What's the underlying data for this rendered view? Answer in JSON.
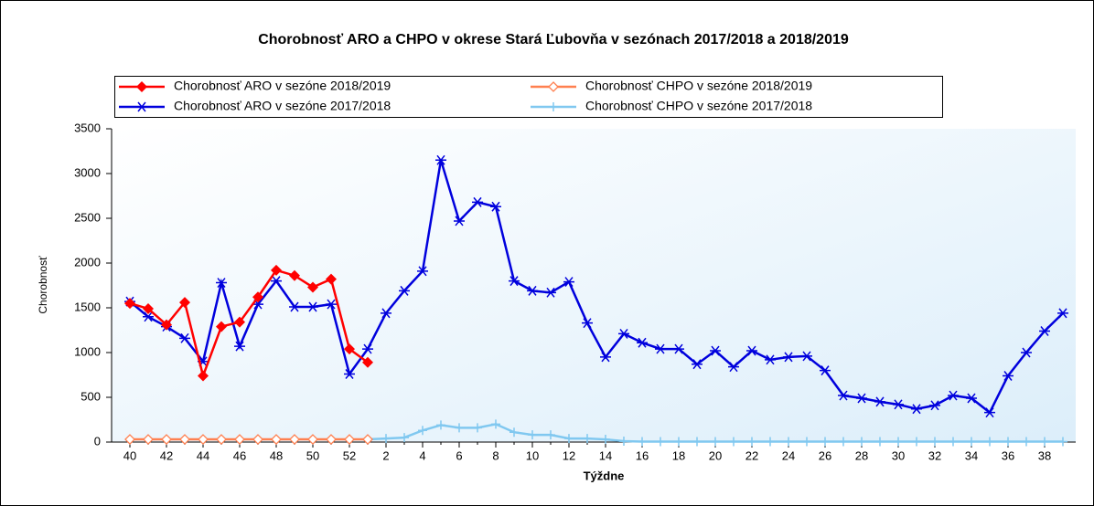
{
  "chart_data": {
    "type": "line",
    "title": "Chorobnosť ARO a CHPO v okrese Stará Ľubovňa v sezónach 2017/2018 a 2018/2019",
    "x_label": "Týždne",
    "y_label": "Chorobnosť",
    "categories": [
      "40",
      null,
      "42",
      null,
      "44",
      null,
      "46",
      null,
      "48",
      null,
      "50",
      null,
      "52",
      null,
      "2",
      null,
      "4",
      null,
      "6",
      null,
      "8",
      null,
      "10",
      null,
      "12",
      null,
      "14",
      null,
      "16",
      null,
      "18",
      null,
      "20",
      null,
      "22",
      null,
      "24",
      null,
      "26",
      null,
      "28",
      null,
      "30",
      null,
      "32",
      null,
      "34",
      null,
      "36",
      null,
      "38",
      null
    ],
    "ylim": [
      0,
      3500
    ],
    "yticks": [
      0,
      500,
      1000,
      1500,
      2000,
      2500,
      3000,
      3500
    ],
    "series": [
      {
        "name": "Chorobnosť ARO v sezóne 2018/2019",
        "color": "#ff0000",
        "marker": "diamond",
        "values": [
          1550,
          1490,
          1310,
          1560,
          740,
          1290,
          1340,
          1620,
          1920,
          1860,
          1730,
          1820,
          1040,
          890,
          null,
          null,
          null,
          null,
          null,
          null,
          null,
          null,
          null,
          null,
          null,
          null,
          null,
          null,
          null,
          null,
          null,
          null,
          null,
          null,
          null,
          null,
          null,
          null,
          null,
          null,
          null,
          null,
          null,
          null,
          null,
          null,
          null,
          null,
          null,
          null,
          null,
          null
        ]
      },
      {
        "name": "Chorobnosť CHPO v sezóne 2018/2019",
        "color": "#ff8050",
        "marker": "hollow-diamond",
        "values": [
          30,
          30,
          30,
          30,
          30,
          30,
          30,
          30,
          30,
          30,
          30,
          30,
          30,
          30,
          null,
          null,
          null,
          null,
          null,
          null,
          null,
          null,
          null,
          null,
          null,
          null,
          null,
          null,
          null,
          null,
          null,
          null,
          null,
          null,
          null,
          null,
          null,
          null,
          null,
          null,
          null,
          null,
          null,
          null,
          null,
          null,
          null,
          null,
          null,
          null,
          null,
          null
        ]
      },
      {
        "name": "Chorobnosť ARO v sezóne 2017/2018",
        "color": "#0000dd",
        "marker": "asterisk",
        "values": [
          1570,
          1400,
          1290,
          1160,
          900,
          1780,
          1070,
          1540,
          1800,
          1510,
          1510,
          1540,
          760,
          1040,
          1440,
          1690,
          1910,
          3150,
          2470,
          2680,
          2630,
          1800,
          1690,
          1670,
          1790,
          1330,
          950,
          1210,
          1110,
          1040,
          1040,
          870,
          1020,
          840,
          1020,
          920,
          950,
          960,
          800,
          520,
          490,
          450,
          420,
          370,
          410,
          520,
          490,
          330,
          740,
          1000,
          1240,
          1440
        ]
      },
      {
        "name": "Chorobnosť CHPO v sezóne 2017/2018",
        "color": "#80c8f0",
        "marker": "plus",
        "values": [
          null,
          null,
          null,
          null,
          null,
          null,
          null,
          null,
          null,
          null,
          null,
          null,
          null,
          30,
          40,
          50,
          130,
          190,
          160,
          160,
          200,
          110,
          80,
          80,
          40,
          40,
          30,
          10,
          5,
          5,
          5,
          5,
          5,
          5,
          5,
          5,
          5,
          5,
          5,
          5,
          5,
          5,
          5,
          5,
          5,
          5,
          5,
          5,
          5,
          5,
          5,
          5
        ]
      }
    ],
    "legend": "top"
  }
}
